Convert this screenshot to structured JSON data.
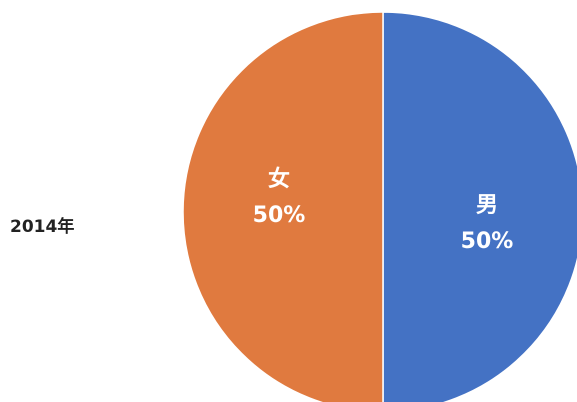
{
  "chart_data": {
    "type": "pie",
    "title": "",
    "category_label": "2014年",
    "slices": [
      {
        "label": "男",
        "value": 50,
        "percent_text": "50%",
        "color": "#4472C4"
      },
      {
        "label": "女",
        "value": 50,
        "percent_text": "50%",
        "color": "#E07A3F"
      }
    ],
    "legend": "none"
  }
}
